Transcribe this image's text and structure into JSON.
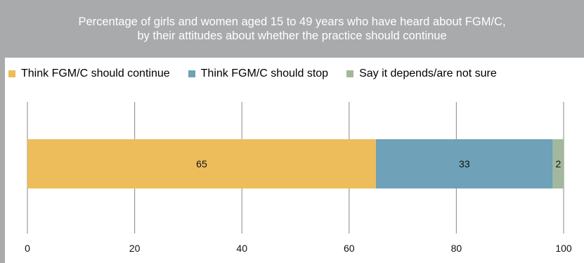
{
  "header": {
    "title_line1": "Percentage of girls and women aged 15 to 49 years who have heard about FGM/C,",
    "title_line2": "by their attitudes about whether the practice should continue"
  },
  "legend": [
    {
      "label": "Think FGM/C should continue",
      "color": "#ecbd5a"
    },
    {
      "label": "Think FGM/C should stop",
      "color": "#6fa1b8"
    },
    {
      "label": "Say it depends/are not sure",
      "color": "#a2b89c"
    }
  ],
  "chart_data": {
    "type": "bar",
    "orientation": "horizontal",
    "stacked": true,
    "title": "Percentage of girls and women aged 15 to 49 years who have heard about FGM/C, by their attitudes about whether the practice should continue",
    "categories": [
      ""
    ],
    "series": [
      {
        "name": "Think FGM/C should continue",
        "values": [
          65
        ],
        "color": "#ecbd5a"
      },
      {
        "name": "Think FGM/C should stop",
        "values": [
          33
        ],
        "color": "#6fa1b8"
      },
      {
        "name": "Say it depends/are not sure",
        "values": [
          2
        ],
        "color": "#a2b89c"
      }
    ],
    "xlim": [
      0,
      100
    ],
    "xticks": [
      0,
      20,
      40,
      60,
      80,
      100
    ],
    "grid": true,
    "grid_color": "#9b9b9b",
    "legend_position": "top",
    "data_labels": true
  }
}
